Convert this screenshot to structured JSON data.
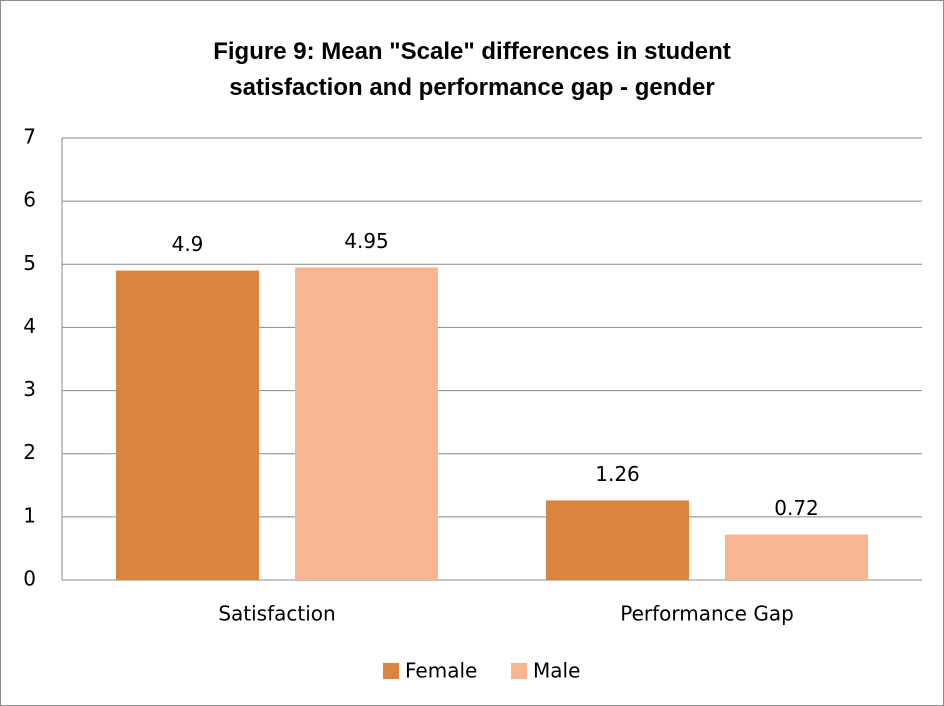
{
  "chart_data": {
    "type": "bar",
    "title": "Figure 9: Mean \"Scale\" differences in student satisfaction and performance gap - gender",
    "categories": [
      "Satisfaction",
      "Performance Gap"
    ],
    "series": [
      {
        "name": "Female",
        "color": "#d9843f",
        "values": [
          4.9,
          1.26
        ]
      },
      {
        "name": "Male",
        "color": "#f7b592",
        "values": [
          4.95,
          0.72
        ]
      }
    ],
    "ylim": [
      0,
      7
    ],
    "yticks": [
      0,
      1,
      2,
      3,
      4,
      5,
      6,
      7
    ],
    "grid": true,
    "legend": "bottom"
  }
}
